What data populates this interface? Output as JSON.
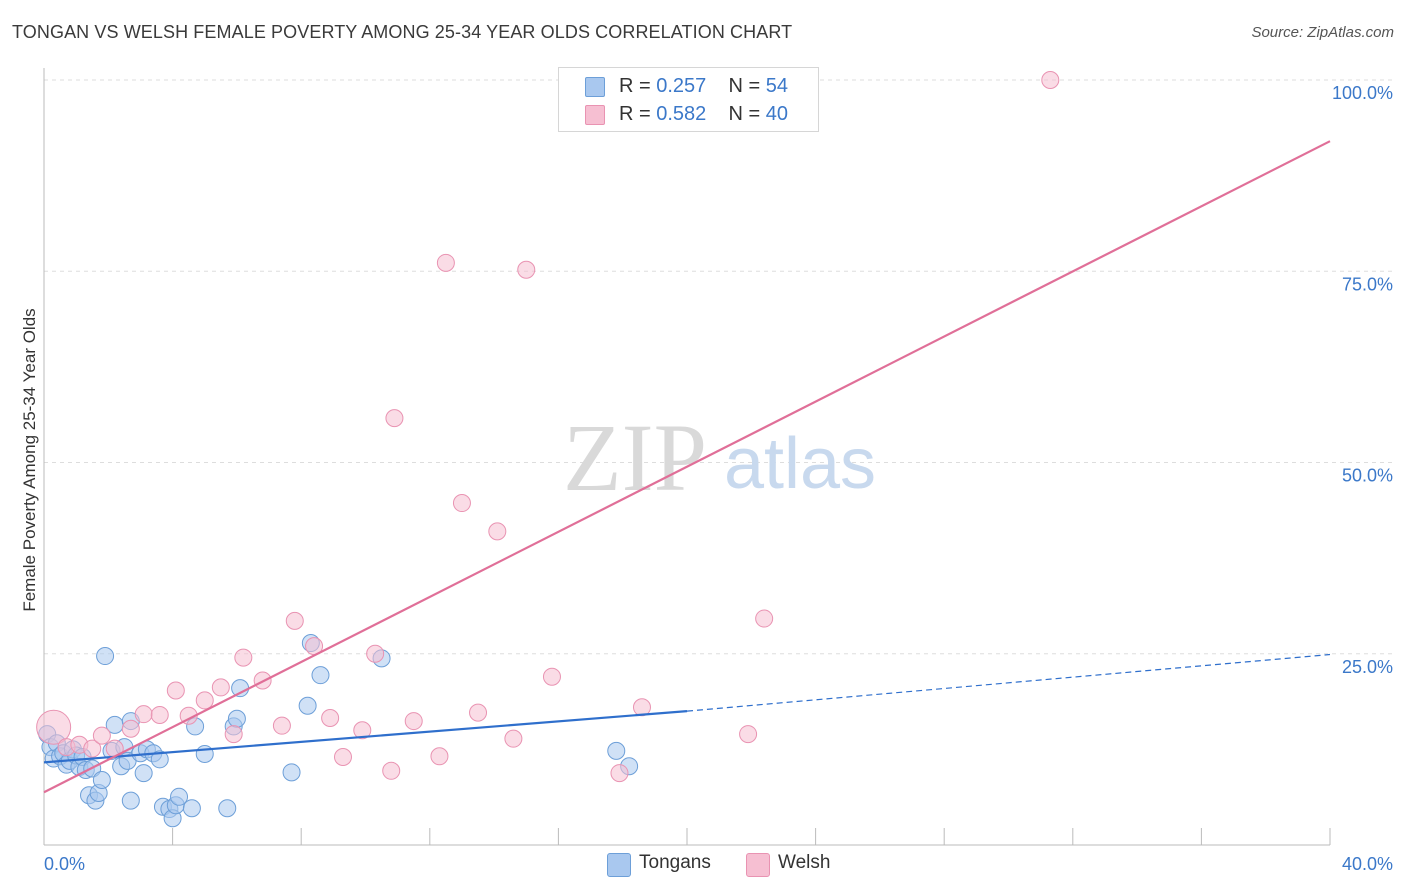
{
  "header": {
    "title": "TONGAN VS WELSH FEMALE POVERTY AMONG 25-34 YEAR OLDS CORRELATION CHART",
    "source": "Source: ZipAtlas.com"
  },
  "watermark": {
    "zip": "ZIP",
    "atlas": "atlas"
  },
  "legend": {
    "rows": [
      {
        "r_label": "R = ",
        "r_value": "0.257",
        "n_label": "N = ",
        "n_value": "54"
      },
      {
        "r_label": "R = ",
        "r_value": "0.582",
        "n_label": "N = ",
        "n_value": "40"
      }
    ],
    "series": [
      "Tongans",
      "Welsh"
    ]
  },
  "colors": {
    "tongans_fill": "#a9c8ef",
    "tongans_stroke": "#6d9fd8",
    "tongans_line": "#2f6fcc",
    "welsh_fill": "#f6bfd2",
    "welsh_stroke": "#e993b2",
    "welsh_line": "#e06f98",
    "axis_text": "#3b78c9",
    "grid": "#dddddd"
  },
  "chart_data": {
    "type": "scatter",
    "title": "TONGAN VS WELSH FEMALE POVERTY AMONG 25-34 YEAR OLDS CORRELATION CHART",
    "xlabel": "",
    "ylabel": "Female Poverty Among 25-34 Year Olds",
    "xlim": [
      0,
      40
    ],
    "ylim": [
      0,
      101
    ],
    "x_tick_labels": [
      {
        "value": 0,
        "label": "0.0%"
      },
      {
        "value": 40,
        "label": "40.0%"
      }
    ],
    "y_tick_labels": [
      {
        "value": 25,
        "label": "25.0%"
      },
      {
        "value": 50,
        "label": "50.0%"
      },
      {
        "value": 75,
        "label": "75.0%"
      },
      {
        "value": 100,
        "label": "100.0%"
      }
    ],
    "x_minor_ticks": [
      0,
      4,
      8,
      12,
      16,
      20,
      24,
      28,
      32,
      36,
      40
    ],
    "series": [
      {
        "name": "Tongans",
        "points": [
          [
            0.1,
            14.5
          ],
          [
            0.2,
            12.8
          ],
          [
            0.3,
            11.3
          ],
          [
            0.4,
            13.3
          ],
          [
            0.5,
            11.6
          ],
          [
            0.6,
            12.0
          ],
          [
            0.7,
            10.5
          ],
          [
            0.8,
            11.0
          ],
          [
            0.9,
            12.5
          ],
          [
            1.0,
            11.7
          ],
          [
            1.1,
            10.2
          ],
          [
            1.2,
            11.5
          ],
          [
            1.3,
            9.8
          ],
          [
            1.4,
            6.5
          ],
          [
            1.5,
            10.0
          ],
          [
            1.6,
            5.8
          ],
          [
            1.7,
            6.8
          ],
          [
            1.8,
            8.5
          ],
          [
            1.9,
            24.7
          ],
          [
            2.1,
            12.3
          ],
          [
            2.2,
            15.7
          ],
          [
            2.4,
            10.3
          ],
          [
            2.5,
            12.8
          ],
          [
            2.6,
            11.0
          ],
          [
            2.7,
            16.2
          ],
          [
            2.7,
            5.8
          ],
          [
            3.0,
            12.0
          ],
          [
            3.1,
            9.4
          ],
          [
            3.2,
            12.5
          ],
          [
            3.4,
            12.0
          ],
          [
            3.6,
            11.2
          ],
          [
            3.7,
            5.0
          ],
          [
            3.9,
            4.7
          ],
          [
            4.0,
            3.5
          ],
          [
            4.1,
            5.2
          ],
          [
            4.2,
            6.3
          ],
          [
            4.6,
            4.8
          ],
          [
            4.7,
            15.5
          ],
          [
            5.0,
            11.9
          ],
          [
            5.7,
            4.8
          ],
          [
            5.9,
            15.5
          ],
          [
            6.0,
            16.5
          ],
          [
            6.1,
            20.5
          ],
          [
            7.7,
            9.5
          ],
          [
            8.2,
            18.2
          ],
          [
            8.3,
            26.4
          ],
          [
            8.6,
            22.2
          ],
          [
            10.5,
            24.4
          ],
          [
            17.8,
            12.3
          ],
          [
            18.2,
            10.3
          ]
        ]
      },
      {
        "name": "Welsh",
        "points": [
          [
            0.3,
            15.4
          ],
          [
            0.7,
            12.8
          ],
          [
            1.1,
            13.1
          ],
          [
            1.5,
            12.6
          ],
          [
            1.8,
            14.3
          ],
          [
            2.2,
            12.6
          ],
          [
            2.7,
            15.2
          ],
          [
            3.1,
            17.1
          ],
          [
            3.6,
            17.0
          ],
          [
            4.1,
            20.2
          ],
          [
            4.5,
            16.9
          ],
          [
            5.0,
            18.9
          ],
          [
            5.5,
            20.6
          ],
          [
            5.9,
            14.5
          ],
          [
            6.2,
            24.5
          ],
          [
            6.8,
            21.5
          ],
          [
            7.4,
            15.6
          ],
          [
            7.8,
            29.3
          ],
          [
            8.4,
            26.0
          ],
          [
            8.9,
            16.6
          ],
          [
            9.3,
            11.5
          ],
          [
            9.9,
            15.0
          ],
          [
            10.3,
            25.0
          ],
          [
            10.8,
            9.7
          ],
          [
            10.9,
            55.8
          ],
          [
            11.5,
            16.2
          ],
          [
            12.3,
            11.6
          ],
          [
            12.5,
            76.1
          ],
          [
            13.0,
            44.7
          ],
          [
            13.5,
            17.3
          ],
          [
            14.1,
            41.0
          ],
          [
            14.6,
            13.9
          ],
          [
            15.0,
            75.2
          ],
          [
            15.8,
            22.0
          ],
          [
            17.9,
            9.4
          ],
          [
            18.6,
            18.0
          ],
          [
            21.9,
            14.5
          ],
          [
            22.4,
            29.6
          ],
          [
            31.3,
            100.0
          ]
        ]
      }
    ],
    "trend_lines": [
      {
        "name": "Tongans",
        "solid": [
          [
            0,
            10.8
          ],
          [
            20,
            17.5
          ]
        ],
        "dashed": [
          [
            20,
            17.5
          ],
          [
            40,
            24.9
          ]
        ]
      },
      {
        "name": "Welsh",
        "solid": [
          [
            0,
            6.9
          ],
          [
            40,
            92.0
          ]
        ]
      }
    ]
  }
}
